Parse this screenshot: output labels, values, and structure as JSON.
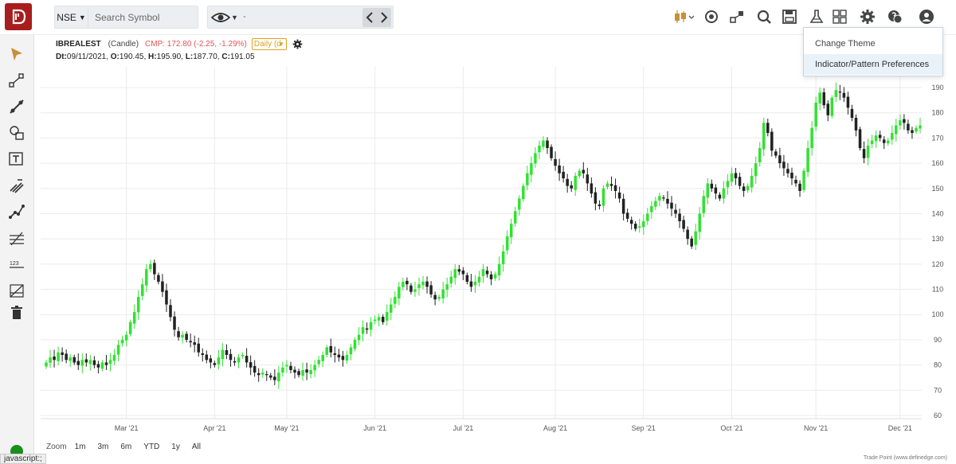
{
  "header": {
    "exchange": "NSE",
    "search_placeholder": "Search Symbol",
    "watchlist_value": "-",
    "icons": [
      "candle-type-icon",
      "snapshot-icon",
      "drawing-icon",
      "settings-search-icon",
      "save-icon",
      "indicators-icon",
      "layout-icon",
      "settings-icon",
      "chat-icon",
      "user-icon"
    ]
  },
  "left_toolbar": {
    "tools": [
      "cursor-icon",
      "line-tool-icon",
      "trendline-icon",
      "shape-tool-icon",
      "text-tool-icon",
      "pitchfork-icon",
      "path-tool-icon",
      "parallel-channel-icon",
      "measure-icon",
      "fib-tool-icon",
      "trash-icon"
    ],
    "measure_label": "123"
  },
  "legend": {
    "symbol": "IBREALEST",
    "chart_type": "(Candle)",
    "cmp": "CMP: 172.80 (-2.25, -1.29%)",
    "interval": "Daily (d",
    "dt_label": "Dt:",
    "dt_value": "09/11/2021,",
    "o_label": "O:",
    "o_value": "190.45,",
    "h_label": "H:",
    "h_value": "195.90,",
    "l_label": "L:",
    "l_value": "187.70,",
    "c_label": "C:",
    "c_value": "191.05"
  },
  "menu": {
    "items": [
      "Change Theme",
      "Indicator/Pattern Preferences"
    ]
  },
  "zoom": {
    "label": "Zoom",
    "buttons": [
      "1m",
      "3m",
      "6m",
      "YTD",
      "1y",
      "All"
    ]
  },
  "credit": "Trade Point (www.definedge.com)",
  "status_text": "javascript:;",
  "colors": {
    "up": "#33e133",
    "down": "#222222",
    "brand": "#a81d1d",
    "cmp": "#e05555",
    "interval_border": "#e0a020"
  },
  "chart_data": {
    "type": "candlestick",
    "ylim": [
      60,
      195
    ],
    "y_ticks": [
      60,
      70,
      80,
      90,
      100,
      110,
      120,
      130,
      140,
      150,
      160,
      170,
      180,
      190
    ],
    "x_ticks": [
      "Mar '21",
      "Apr '21",
      "May '21",
      "Jun '21",
      "Jul '21",
      "Aug '21",
      "Sep '21",
      "Oct '21",
      "Nov '21",
      "Dec '21"
    ],
    "x_tick_index": [
      20,
      42,
      60,
      82,
      104,
      127,
      149,
      171,
      192,
      213
    ],
    "grid": true,
    "closes": [
      81,
      83,
      82,
      85,
      84,
      82,
      83,
      81,
      80,
      82,
      81,
      82,
      80,
      79,
      81,
      80,
      82,
      84,
      88,
      90,
      92,
      97,
      101,
      107,
      112,
      118,
      120,
      116,
      113,
      109,
      104,
      99,
      94,
      91,
      92,
      90,
      89,
      88,
      85,
      84,
      82,
      81,
      80,
      83,
      86,
      84,
      82,
      81,
      83,
      84,
      81,
      79,
      77,
      76,
      77,
      76,
      75,
      74,
      77,
      79,
      80,
      78,
      77,
      76,
      78,
      77,
      78,
      80,
      82,
      84,
      87,
      85,
      84,
      83,
      82,
      84,
      87,
      90,
      92,
      95,
      94,
      97,
      98,
      99,
      97,
      101,
      104,
      107,
      111,
      113,
      112,
      109,
      110,
      112,
      113,
      111,
      108,
      106,
      107,
      110,
      112,
      115,
      118,
      117,
      116,
      113,
      111,
      113,
      115,
      118,
      116,
      114,
      116,
      120,
      125,
      131,
      136,
      141,
      146,
      151,
      156,
      160,
      164,
      167,
      169,
      166,
      162,
      159,
      156,
      154,
      151,
      150,
      155,
      157,
      156,
      152,
      148,
      144,
      143,
      150,
      152,
      151,
      149,
      146,
      140,
      138,
      136,
      134,
      135,
      137,
      140,
      143,
      145,
      147,
      146,
      144,
      142,
      140,
      137,
      134,
      130,
      127,
      133,
      140,
      147,
      152,
      150,
      148,
      146,
      150,
      153,
      156,
      154,
      151,
      149,
      151,
      155,
      160,
      166,
      176,
      172,
      165,
      163,
      160,
      158,
      156,
      154,
      152,
      149,
      157,
      166,
      174,
      184,
      188,
      183,
      179,
      186,
      189,
      188,
      186,
      182,
      178,
      173,
      166,
      162,
      167,
      169,
      171,
      170,
      168,
      169,
      172,
      175,
      177,
      176,
      173,
      172,
      174,
      175
    ],
    "summary": "Daily candles, Feb 2021 - Dec 2021, rising from ~80 to ~175"
  }
}
